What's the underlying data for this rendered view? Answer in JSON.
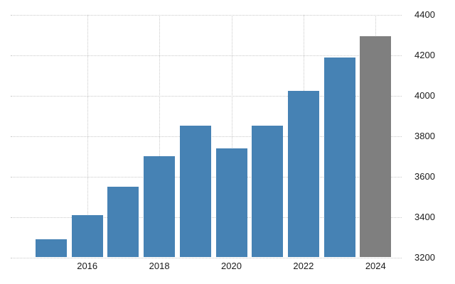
{
  "chart_data": {
    "type": "bar",
    "categories": [
      "2015",
      "2016",
      "2017",
      "2018",
      "2019",
      "2020",
      "2021",
      "2022",
      "2023",
      "2024"
    ],
    "values": [
      3290,
      3410,
      3550,
      3700,
      3850,
      3740,
      3850,
      4025,
      4190,
      4295
    ],
    "bar_colors": [
      "#4682B4",
      "#4682B4",
      "#4682B4",
      "#4682B4",
      "#4682B4",
      "#4682B4",
      "#4682B4",
      "#4682B4",
      "#4682B4",
      "#7F7F7F"
    ],
    "title": "",
    "xlabel": "",
    "ylabel": "",
    "ylim": [
      3200,
      4440
    ],
    "y_ticks": [
      3200,
      3400,
      3600,
      3800,
      4000,
      4200,
      4400
    ],
    "x_tick_labels": [
      "2016",
      "2018",
      "2020",
      "2022",
      "2024"
    ],
    "legend": "none",
    "grid": "dotted",
    "y_axis_side": "right",
    "colors": {
      "bar_blue": "#4682B4",
      "bar_gray": "#7F7F7F",
      "gridline": "#C9C9C9",
      "text": "#1A1A1A",
      "background": "#FFFFFF"
    }
  }
}
